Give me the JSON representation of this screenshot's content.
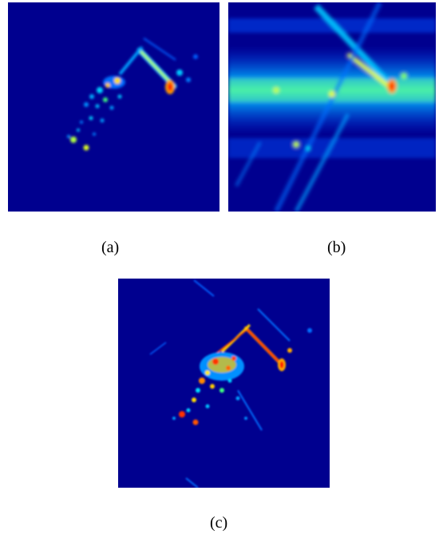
{
  "panels": [
    {
      "id": "a",
      "label": "(a)"
    },
    {
      "id": "b",
      "label": "(b)"
    },
    {
      "id": "c",
      "label": "(c)"
    }
  ],
  "colors": {
    "background": "#00008f",
    "low": "#0044ff",
    "mid": "#00c8ff",
    "high": "#ffff00",
    "peak": "#ff1a00"
  }
}
